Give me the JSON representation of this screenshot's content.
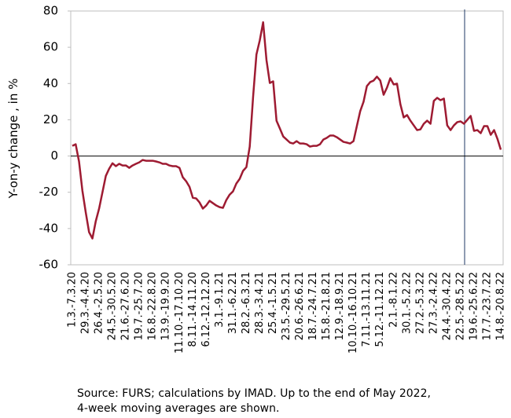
{
  "chart_data": {
    "type": "line",
    "ylabel": "Y-on-y change , in %",
    "notes": [
      "Source: FURS; calculations by IMAD. Up to the end of May 2022,",
      "4-week moving averages are shown."
    ],
    "color": "#9e1b32",
    "ylim": [
      -60,
      80
    ],
    "yticks": [
      -60,
      -40,
      -20,
      0,
      20,
      40,
      60,
      80
    ],
    "categories": [
      "1.3.-7.3.20",
      null,
      null,
      null,
      "29.3.-4.4.20",
      null,
      null,
      null,
      "26.4.-2.5.20",
      null,
      null,
      null,
      "24.5.-30.5.20",
      null,
      null,
      null,
      "21.6.-27.6.20",
      null,
      null,
      null,
      "19.7.-25.7.20",
      null,
      null,
      null,
      "16.8.-22.8.20",
      null,
      null,
      null,
      "13.9.-19.9.20",
      null,
      null,
      null,
      "11.10.-17.10.20",
      null,
      null,
      null,
      "8.11.-14.11.20",
      null,
      null,
      null,
      "6.12.-12.12.20",
      null,
      null,
      null,
      "3.1.-9.1.21",
      null,
      null,
      null,
      "31.1.-6.2.21",
      null,
      null,
      null,
      "28.2.-6.3.21",
      null,
      null,
      null,
      "28.3.-3.4.21",
      null,
      null,
      null,
      "25.4.-1.5.21",
      null,
      null,
      null,
      "23.5.-29.5.21",
      null,
      null,
      null,
      "20.6.-26.6.21",
      null,
      null,
      null,
      "18.7.-24.7.21",
      null,
      null,
      null,
      "15.8.-21.8.21",
      null,
      null,
      null,
      "12.9.-18.9.21",
      null,
      null,
      null,
      "10.10.-16.10.21",
      null,
      null,
      null,
      "7.11.-13.11.21",
      null,
      null,
      null,
      "5.12.-11.12.21",
      null,
      null,
      null,
      "2.1.-8.1.22",
      null,
      null,
      null,
      "30.1.-5.2.22",
      null,
      null,
      null,
      "27.2.-5.3.22",
      null,
      null,
      null,
      "27.3.-2.4.22",
      null,
      null,
      null,
      "24.4.-30.4.22",
      null,
      null,
      null,
      "22.5.-28.5.22",
      null,
      null,
      null,
      "19.6.-25.6.22",
      null,
      null,
      null,
      "17.7.-23.7.22",
      null,
      null,
      null,
      "14.8.-20.8.22"
    ],
    "values": [
      5.6,
      6.5,
      -3,
      -19,
      -31,
      -42,
      -45.5,
      -36,
      -29,
      -20,
      -11,
      -7,
      -4,
      -5.6,
      -4.3,
      -5.2,
      -5.2,
      -6.5,
      -5.2,
      -4.3,
      -3.5,
      -2.2,
      -2.6,
      -2.6,
      -2.6,
      -3,
      -3.5,
      -4.3,
      -4.3,
      -5.2,
      -5.6,
      -5.6,
      -6.5,
      -11.7,
      -13.9,
      -17,
      -23,
      -23.4,
      -25.6,
      -29,
      -27.3,
      -24.7,
      -26,
      -27.3,
      -28.2,
      -28.6,
      -24.3,
      -21.3,
      -19.5,
      -15.2,
      -12.6,
      -8.2,
      -6.1,
      5.2,
      32.5,
      56,
      63.8,
      73.8,
      53,
      40.3,
      41.2,
      19.5,
      15.2,
      10.8,
      9.1,
      7.4,
      6.9,
      8.2,
      6.9,
      6.9,
      6.5,
      5.2,
      5.6,
      5.6,
      6.5,
      9.1,
      10,
      11.3,
      11.3,
      10.4,
      9.1,
      7.8,
      7.4,
      6.9,
      8.2,
      16.5,
      24.7,
      29.9,
      38.6,
      40.8,
      41.6,
      43.8,
      41.6,
      33.8,
      37.7,
      42.9,
      39.5,
      39.9,
      28.6,
      21.3,
      22.6,
      19.5,
      16.9,
      14.3,
      14.7,
      17.8,
      19.5,
      17.8,
      30.4,
      32.1,
      30.8,
      31.7,
      16.9,
      14.3,
      16.9,
      18.7,
      19.1,
      17.8,
      20,
      22.1,
      13.9,
      14.3,
      12.6,
      16.5,
      16.5,
      11.7,
      14.3,
      9.5,
      3.5
    ]
  }
}
